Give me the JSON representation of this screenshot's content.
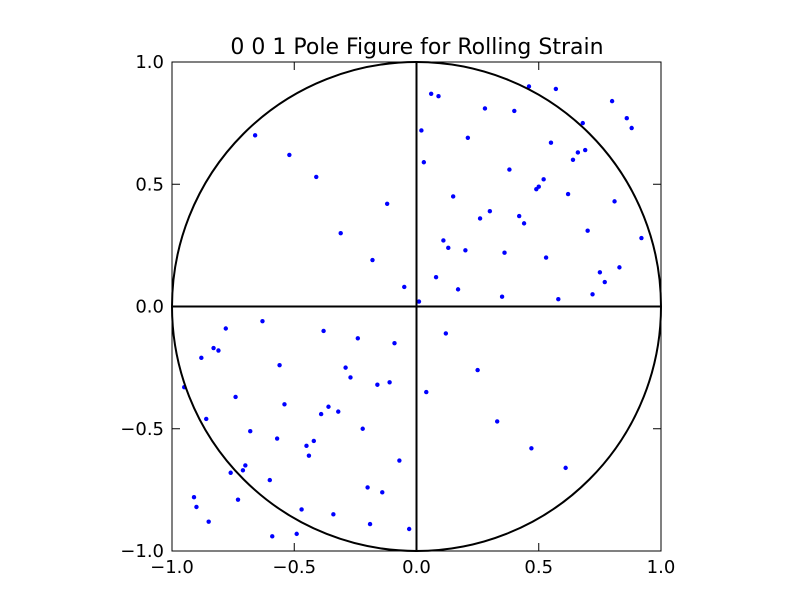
{
  "chart_data": {
    "type": "scatter",
    "title": "0 0 1 Pole Figure for Rolling Strain",
    "xlabel": "",
    "ylabel": "",
    "xlim": [
      -1.0,
      1.0
    ],
    "ylim": [
      -1.0,
      1.0
    ],
    "xticks": [
      "−1.0",
      "−0.5",
      "0.0",
      "0.5",
      "1.0"
    ],
    "yticks": [
      "−1.0",
      "−0.5",
      "0.0",
      "0.5",
      "1.0"
    ],
    "grid": false,
    "legend": "none",
    "colors": {
      "points": "#0000ff",
      "circle": "#000000",
      "axes_lines": "#000000"
    },
    "annotations": {
      "unit_circle": {
        "center": [
          0.0,
          0.0
        ],
        "radius": 1.0
      },
      "crosshair_x": 0.0,
      "crosshair_y": 0.0
    },
    "series": [
      {
        "x": [
          0.01,
          -0.05,
          0.12,
          -0.18,
          0.25,
          -0.31,
          0.04,
          -0.12,
          0.33,
          -0.41,
          0.47,
          -0.52,
          0.61,
          -0.66,
          0.72,
          -0.78,
          0.83,
          -0.88,
          0.92,
          -0.95,
          0.15,
          -0.22,
          0.38,
          -0.44,
          0.55,
          -0.6,
          0.68,
          -0.73,
          0.8,
          -0.85,
          0.08,
          -0.09,
          0.2,
          -0.27,
          0.42,
          -0.36,
          0.5,
          -0.57,
          0.64,
          -0.7,
          0.02,
          -0.14,
          0.28,
          -0.34,
          0.46,
          -0.49,
          0.58,
          -0.63,
          0.75,
          -0.81,
          0.11,
          -0.16,
          0.3,
          -0.39,
          0.52,
          -0.45,
          0.69,
          -0.76,
          0.86,
          -0.9,
          0.06,
          -0.03,
          0.17,
          -0.24,
          0.36,
          -0.29,
          0.44,
          -0.54,
          0.62,
          -0.68,
          0.03,
          -0.07,
          0.21,
          -0.2,
          0.4,
          -0.47,
          0.57,
          -0.59,
          0.77,
          -0.83,
          0.13,
          -0.11,
          0.26,
          -0.32,
          0.49,
          -0.42,
          0.66,
          -0.71,
          0.88,
          -0.91,
          0.09,
          -0.19,
          0.35,
          -0.38,
          0.53,
          -0.56,
          0.7,
          -0.74,
          0.81,
          -0.86
        ],
        "y": [
          0.02,
          0.08,
          -0.11,
          0.19,
          -0.26,
          0.3,
          -0.35,
          0.42,
          -0.47,
          0.53,
          -0.58,
          0.62,
          -0.66,
          0.7,
          0.05,
          -0.09,
          0.16,
          -0.21,
          0.28,
          -0.33,
          0.45,
          -0.5,
          0.56,
          -0.61,
          0.67,
          -0.71,
          0.75,
          -0.79,
          0.84,
          -0.88,
          0.12,
          -0.15,
          0.23,
          -0.29,
          0.37,
          -0.41,
          0.49,
          -0.54,
          0.6,
          -0.65,
          0.72,
          -0.76,
          0.81,
          -0.85,
          0.9,
          -0.93,
          0.03,
          -0.06,
          0.14,
          -0.18,
          0.27,
          -0.32,
          0.39,
          -0.44,
          0.52,
          -0.57,
          0.64,
          -0.68,
          0.77,
          -0.82,
          0.87,
          -0.91,
          0.07,
          -0.13,
          0.22,
          -0.25,
          0.34,
          -0.4,
          0.46,
          -0.51,
          0.59,
          -0.63,
          0.69,
          -0.74,
          0.8,
          -0.83,
          0.89,
          -0.94,
          0.1,
          -0.17,
          0.24,
          -0.31,
          0.36,
          -0.43,
          0.48,
          -0.55,
          0.63,
          -0.67,
          0.73,
          -0.78,
          0.86,
          -0.89,
          0.04,
          -0.1,
          0.2,
          -0.24,
          0.31,
          -0.37,
          0.43,
          -0.46
        ]
      }
    ]
  }
}
